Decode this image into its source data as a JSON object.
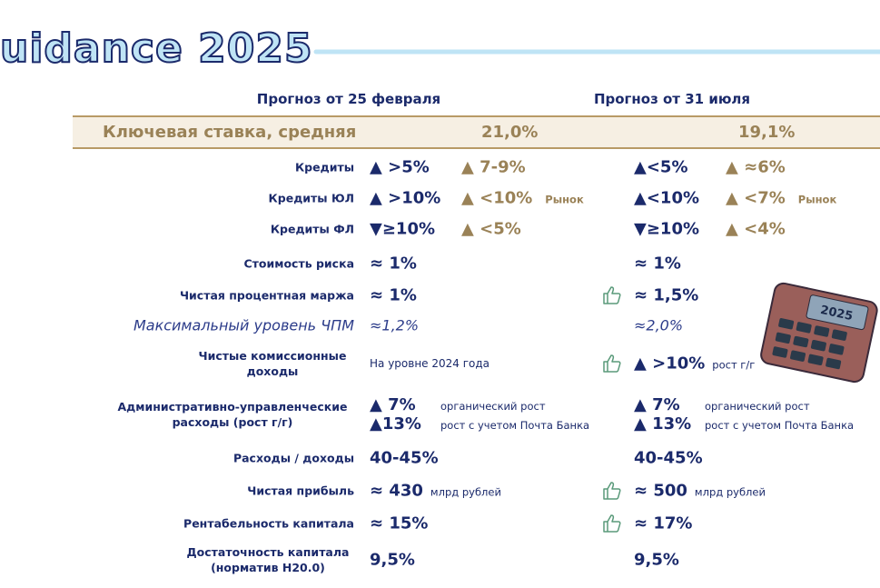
{
  "header": {
    "title": "uidance 2025"
  },
  "columns": [
    "Прогноз от 25 февраля",
    "Прогноз от 31 июля"
  ],
  "key_rate": {
    "label": "Ключевая ставка, средняя",
    "values": [
      "21,0%",
      "19,1%"
    ]
  },
  "illustration_label": "2025",
  "rows": [
    {
      "label": "Кредиты",
      "feb": [
        {
          "value": "▲ >5%"
        },
        {
          "value": "▲ 7-9%",
          "color": "#9a8257"
        }
      ],
      "jul": [
        {
          "value": "▲<5%"
        },
        {
          "value": "▲ ≈6%",
          "color": "#9a8257"
        }
      ]
    },
    {
      "label": "Кредиты ЮЛ",
      "feb": [
        {
          "value": "▲ >10%"
        },
        {
          "value": "▲ <10%",
          "color": "#9a8257",
          "note": "Рынок"
        }
      ],
      "jul": [
        {
          "value": "▲<10%"
        },
        {
          "value": "▲ <7%",
          "color": "#9a8257",
          "note": "Рынок"
        }
      ]
    },
    {
      "label": "Кредиты ФЛ",
      "feb": [
        {
          "value": "▼≥10%"
        },
        {
          "value": "▲ <5%",
          "color": "#9a8257"
        }
      ],
      "jul": [
        {
          "value": "▼≥10%"
        },
        {
          "value": "▲ <4%",
          "color": "#9a8257"
        }
      ]
    },
    {
      "label": "Стоимость риска",
      "feb": [
        {
          "value": "≈ 1%"
        }
      ],
      "jul": [
        {
          "value": "≈ 1%"
        }
      ]
    },
    {
      "label": "Чистая процентная маржа",
      "feb": [
        {
          "value": "≈ 1%"
        }
      ],
      "jul": [
        {
          "value": "≈ 1,5%"
        }
      ]
    },
    {
      "label": "Максимальный уровень ЧПМ",
      "feb": [
        {
          "value": "≈1,2%"
        }
      ],
      "jul": [
        {
          "value": "≈2,0%"
        }
      ]
    },
    {
      "label": "Чистые комиссионные доходы",
      "feb": [
        {
          "value": "На уровне 2024 года"
        }
      ],
      "jul": [
        {
          "value": "▲ >10%",
          "note": "рост г/г"
        }
      ]
    },
    {
      "label": "Административно-управленческие расходы (рост г/г)",
      "feb": [
        {
          "value": "▲ 7%",
          "note": "органический рост"
        },
        {
          "value": "▲13%",
          "note": "рост с учетом Почта Банка"
        }
      ],
      "jul": [
        {
          "value": "▲ 7%",
          "note": "органический рост"
        },
        {
          "value": "▲ 13%",
          "note": "рост с учетом Почта Банка"
        }
      ]
    },
    {
      "label": "Расходы / доходы",
      "feb": [
        {
          "value": "40-45%"
        }
      ],
      "jul": [
        {
          "value": "40-45%"
        }
      ]
    },
    {
      "label": "Чистая прибыль",
      "feb": [
        {
          "value": "≈ 430",
          "note": "млрд рублей"
        }
      ],
      "jul": [
        {
          "value": "≈ 500",
          "note": "млрд рублей"
        }
      ]
    },
    {
      "label": "Рентабельность капитала",
      "feb": [
        {
          "value": "≈ 15%"
        }
      ],
      "jul": [
        {
          "value": "≈ 17%"
        }
      ]
    },
    {
      "label": "Достаточность капитала (норматив Н20.0)",
      "feb": [
        {
          "value": "9,5%"
        }
      ],
      "jul": [
        {
          "value": "9,5%"
        }
      ]
    }
  ]
}
